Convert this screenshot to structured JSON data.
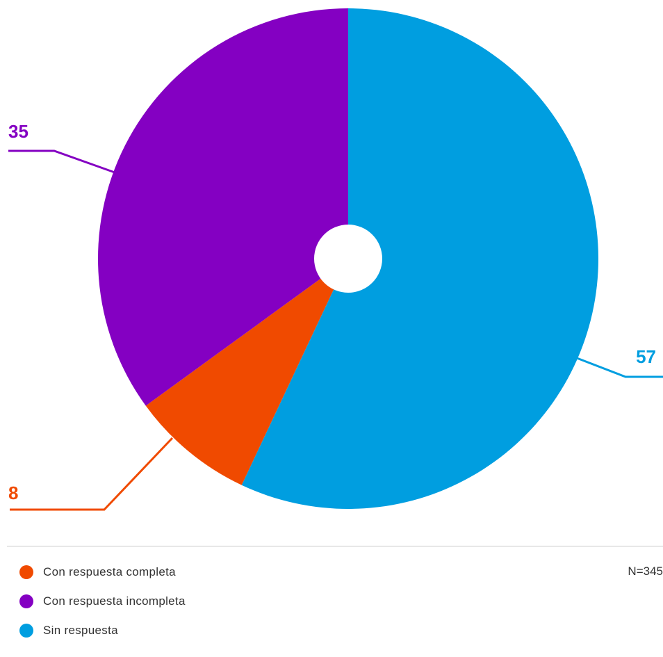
{
  "chart_data": {
    "type": "pie",
    "categories": [
      "Con respuesta completa",
      "Con respuesta incompleta",
      "Sin respuesta"
    ],
    "values": [
      8,
      35,
      57
    ],
    "colors": [
      "#f04a00",
      "#8400c2",
      "#009ee0"
    ],
    "data_labels": [
      "8",
      "35",
      "57"
    ],
    "legend": {
      "placement": "bottom-left",
      "entries": [
        "Con respuesta completa",
        "Con respuesta incompleta",
        "Sin respuesta"
      ]
    },
    "note": "N=345",
    "center_hole": true,
    "start_angle_deg": 0,
    "direction": "clockwise",
    "slice_order": [
      "Sin respuesta",
      "Con respuesta completa",
      "Con respuesta incompleta"
    ]
  }
}
